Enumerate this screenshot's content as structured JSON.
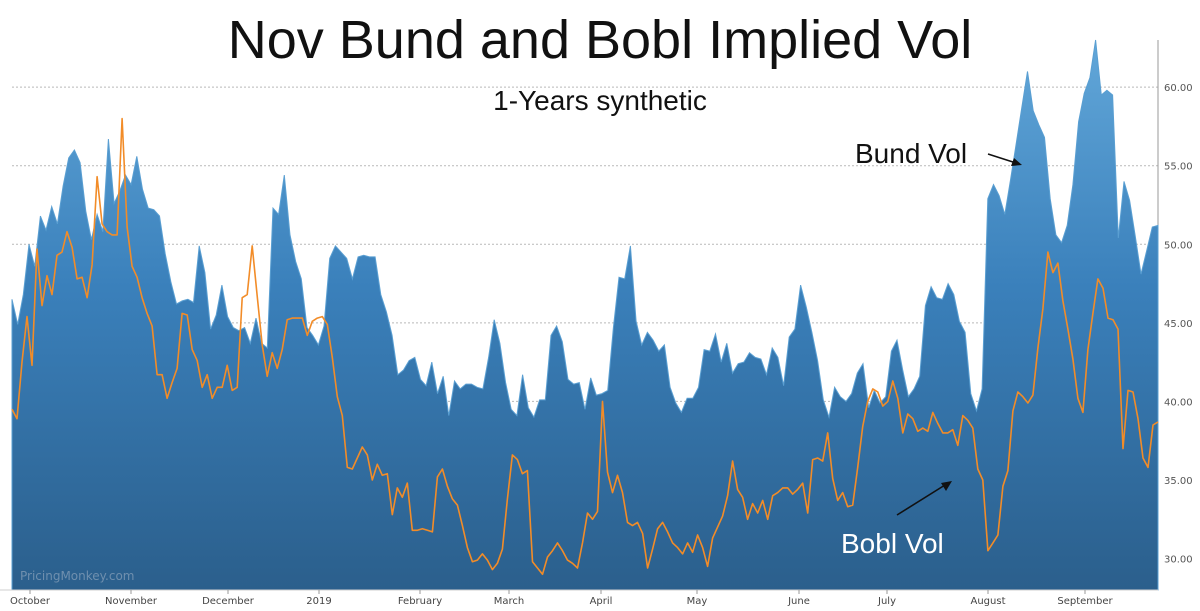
{
  "chart_data": {
    "type": "area",
    "title": "Nov Bund and Bobl Implied Vol",
    "subtitle": "1-Years synthetic",
    "xlabel": "",
    "ylabel": "",
    "ylim": [
      28.0,
      63.0
    ],
    "y_ticks": [
      "30.00",
      "35.00",
      "40.00",
      "45.00",
      "50.00",
      "55.00",
      "60.00"
    ],
    "x_ticks": [
      "October",
      "November",
      "December",
      "2019",
      "February",
      "March",
      "April",
      "May",
      "June",
      "July",
      "August",
      "September"
    ],
    "grid": true,
    "watermark": "PricingMonkey.com",
    "series": [
      {
        "name": "Bund Vol",
        "style": "area",
        "color": "#3f86c0",
        "values": [
          46.5,
          44.9,
          46.8,
          50.0,
          48.6,
          51.8,
          50.9,
          52.4,
          51.3,
          53.7,
          55.5,
          56.0,
          55.2,
          52.1,
          50.3,
          51.9,
          50.8,
          56.7,
          52.6,
          53.4,
          54.4,
          53.8,
          55.6,
          53.5,
          52.3,
          52.2,
          51.8,
          49.4,
          47.6,
          46.2,
          46.4,
          46.5,
          46.3,
          49.9,
          48.2,
          44.6,
          45.5,
          47.4,
          45.4,
          44.7,
          44.5,
          44.7,
          43.7,
          45.3,
          43.7,
          43.4,
          52.3,
          51.9,
          54.4,
          50.6,
          48.9,
          47.8,
          44.7,
          44.2,
          43.6,
          44.8,
          49.1,
          49.9,
          49.5,
          49.1,
          47.8,
          49.2,
          49.3,
          49.2,
          49.2,
          46.8,
          45.7,
          44.2,
          41.7,
          42.0,
          42.6,
          42.8,
          41.4,
          41.0,
          42.5,
          40.5,
          41.6,
          39.1,
          41.3,
          40.8,
          41.1,
          41.1,
          40.9,
          40.8,
          42.8,
          45.2,
          43.7,
          41.2,
          39.5,
          39.1,
          41.7,
          39.6,
          39.0,
          40.1,
          40.1,
          44.2,
          44.8,
          43.8,
          41.4,
          41.1,
          41.2,
          39.5,
          41.5,
          40.4,
          40.5,
          40.7,
          44.7,
          47.9,
          47.8,
          49.9,
          45.1,
          43.6,
          44.4,
          43.9,
          43.2,
          43.6,
          40.9,
          39.9,
          39.3,
          40.2,
          40.2,
          40.9,
          43.3,
          43.2,
          44.3,
          42.5,
          43.7,
          41.8,
          42.4,
          42.5,
          43.1,
          42.8,
          42.7,
          41.7,
          43.4,
          42.8,
          41.0,
          44.1,
          44.6,
          47.4,
          46.0,
          44.4,
          42.6,
          40.1,
          39.0,
          40.9,
          40.3,
          40.0,
          40.5,
          41.8,
          42.4,
          39.6,
          40.7,
          39.9,
          40.3,
          43.2,
          43.9,
          42.0,
          40.3,
          40.8,
          41.6,
          46.1,
          47.3,
          46.6,
          46.5,
          47.5,
          46.8,
          45.1,
          44.4,
          40.5,
          39.4,
          40.8,
          52.9,
          53.8,
          53.1,
          51.9,
          54.1,
          56.4,
          58.7,
          61.0,
          58.5,
          57.6,
          56.8,
          52.9,
          50.6,
          50.1,
          51.2,
          53.8,
          57.8,
          59.6,
          60.6,
          63.0,
          59.5,
          59.8,
          59.5,
          50.4,
          54.0,
          52.8,
          50.5,
          48.1,
          49.6,
          51.1,
          51.2
        ]
      },
      {
        "name": "Bobl Vol",
        "style": "line",
        "color": "#f28c28",
        "values": [
          39.5,
          38.9,
          42.5,
          45.4,
          42.3,
          49.7,
          46.1,
          48.0,
          46.8,
          49.3,
          49.5,
          50.8,
          49.8,
          47.8,
          47.9,
          46.6,
          48.7,
          54.3,
          51.3,
          50.8,
          50.6,
          50.6,
          58.0,
          51.1,
          48.6,
          47.9,
          46.6,
          45.6,
          44.8,
          41.7,
          41.7,
          40.2,
          41.2,
          42.1,
          45.6,
          45.5,
          43.3,
          42.6,
          40.9,
          41.7,
          40.2,
          40.9,
          40.9,
          42.3,
          40.7,
          40.9,
          46.6,
          46.8,
          49.9,
          46.7,
          43.6,
          41.6,
          43.1,
          42.1,
          43.3,
          45.2,
          45.3,
          45.3,
          45.3,
          44.2,
          45.1,
          45.3,
          45.4,
          44.9,
          42.8,
          40.3,
          39.1,
          35.8,
          35.7,
          36.4,
          37.1,
          36.6,
          35.0,
          36.0,
          35.3,
          35.4,
          32.8,
          34.5,
          33.9,
          34.8,
          31.8,
          31.8,
          31.9,
          31.8,
          31.7,
          35.2,
          35.7,
          34.6,
          33.8,
          33.4,
          32.1,
          30.7,
          29.8,
          29.9,
          30.3,
          29.9,
          29.3,
          29.7,
          30.6,
          33.8,
          36.6,
          36.3,
          35.4,
          35.6,
          29.8,
          29.4,
          29.0,
          30.1,
          30.5,
          31.0,
          30.5,
          29.9,
          29.7,
          29.4,
          31.0,
          32.9,
          32.5,
          33.0,
          40.0,
          35.5,
          34.2,
          35.3,
          34.2,
          32.3,
          32.1,
          32.3,
          31.6,
          29.4,
          30.6,
          31.9,
          32.3,
          31.7,
          31.0,
          30.7,
          30.3,
          31.0,
          30.4,
          31.5,
          30.7,
          29.5,
          31.3,
          32.0,
          32.7,
          34.0,
          36.2,
          34.4,
          33.9,
          32.5,
          33.5,
          32.9,
          33.7,
          32.5,
          34.0,
          34.2,
          34.5,
          34.5,
          34.1,
          34.4,
          34.8,
          32.9,
          36.3,
          36.4,
          36.2,
          38.0,
          35.1,
          33.7,
          34.2,
          33.3,
          33.4,
          35.8,
          38.4,
          40.0,
          40.8,
          40.6,
          39.7,
          40.0,
          41.3,
          40.2,
          38.0,
          39.2,
          38.9,
          38.1,
          38.3,
          38.1,
          39.3,
          38.6,
          38.0,
          38.0,
          38.2,
          37.2,
          39.1,
          38.8,
          38.3,
          35.7,
          35.0,
          30.5,
          31.0,
          31.5,
          34.6,
          35.6,
          39.4,
          40.6,
          40.3,
          39.9,
          40.4,
          43.4,
          45.9,
          49.5,
          48.2,
          48.8,
          46.4,
          44.6,
          42.7,
          40.2,
          39.3,
          43.3,
          45.6,
          47.8,
          47.2,
          45.3,
          45.2,
          44.6,
          37.0,
          40.7,
          40.6,
          38.9,
          36.4,
          35.8,
          38.5,
          38.7
        ]
      }
    ],
    "annotations": [
      {
        "text": "Bund Vol",
        "color": "#111111"
      },
      {
        "text": "Bobl Vol",
        "color": "#ffffff"
      }
    ]
  }
}
